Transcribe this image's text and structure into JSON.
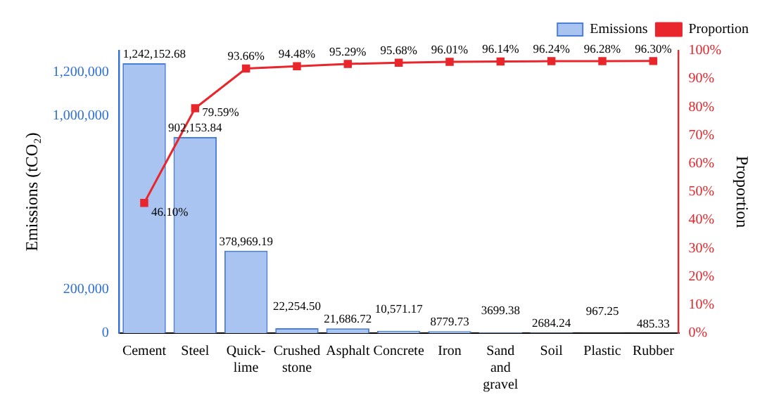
{
  "chart_data": {
    "type": "bar",
    "categories": [
      "Cement",
      "Steel",
      "Quick-lime",
      "Crushed stone",
      "Asphalt",
      "Concrete",
      "Iron",
      "Sand and gravel",
      "Soil",
      "Plastic",
      "Rubber"
    ],
    "series": [
      {
        "name": "Emissions",
        "color": "#a9c4f0",
        "values": [
          1242152.68,
          902153.84,
          378969.19,
          22254.5,
          21686.72,
          10571.17,
          8779.73,
          3699.38,
          2684.24,
          967.25,
          485.33
        ],
        "value_labels": [
          "1,242,152.68",
          "902,153.84",
          "378,969.19",
          "22,254.50",
          "21,686.72",
          "10,571.17",
          "8779.73",
          "3699.38",
          "2684.24",
          "967.25",
          "485.33"
        ]
      },
      {
        "name": "Proportion",
        "type": "line",
        "axis": "y2",
        "color": "#e8262b",
        "marker": "square",
        "values": [
          46.1,
          79.59,
          93.66,
          94.48,
          95.29,
          95.68,
          96.01,
          96.14,
          96.24,
          96.28,
          96.3
        ],
        "value_labels": [
          "46.10%",
          "79.59%",
          "93.66%",
          "94.48%",
          "95.29%",
          "95.68%",
          "96.01%",
          "96.14%",
          "96.24%",
          "96.28%",
          "96.30%"
        ]
      }
    ],
    "ylabel": "Emissions (tCO₂)",
    "y2label": "Proportion",
    "ylim": [
      0,
      1300000
    ],
    "yticks": [
      0,
      {
        "value": 200000,
        "label": "200,000"
      },
      {
        "value": 1000000,
        "label": "1,000,000"
      },
      {
        "value": 1200000,
        "label": "1,200,000"
      }
    ],
    "y2lim": [
      0,
      100
    ],
    "y2ticks": [
      {
        "value": 0,
        "label": "0%"
      },
      {
        "value": 10,
        "label": "10%"
      },
      {
        "value": 20,
        "label": "20%"
      },
      {
        "value": 30,
        "label": "30%"
      },
      {
        "value": 40,
        "label": "40%"
      },
      {
        "value": 50,
        "label": "50%"
      },
      {
        "value": 60,
        "label": "60%"
      },
      {
        "value": 70,
        "label": "70%"
      },
      {
        "value": 80,
        "label": "80%"
      },
      {
        "value": 90,
        "label": "90%"
      },
      {
        "value": 100,
        "label": "100%"
      }
    ],
    "legend": "top right",
    "grid": false
  }
}
